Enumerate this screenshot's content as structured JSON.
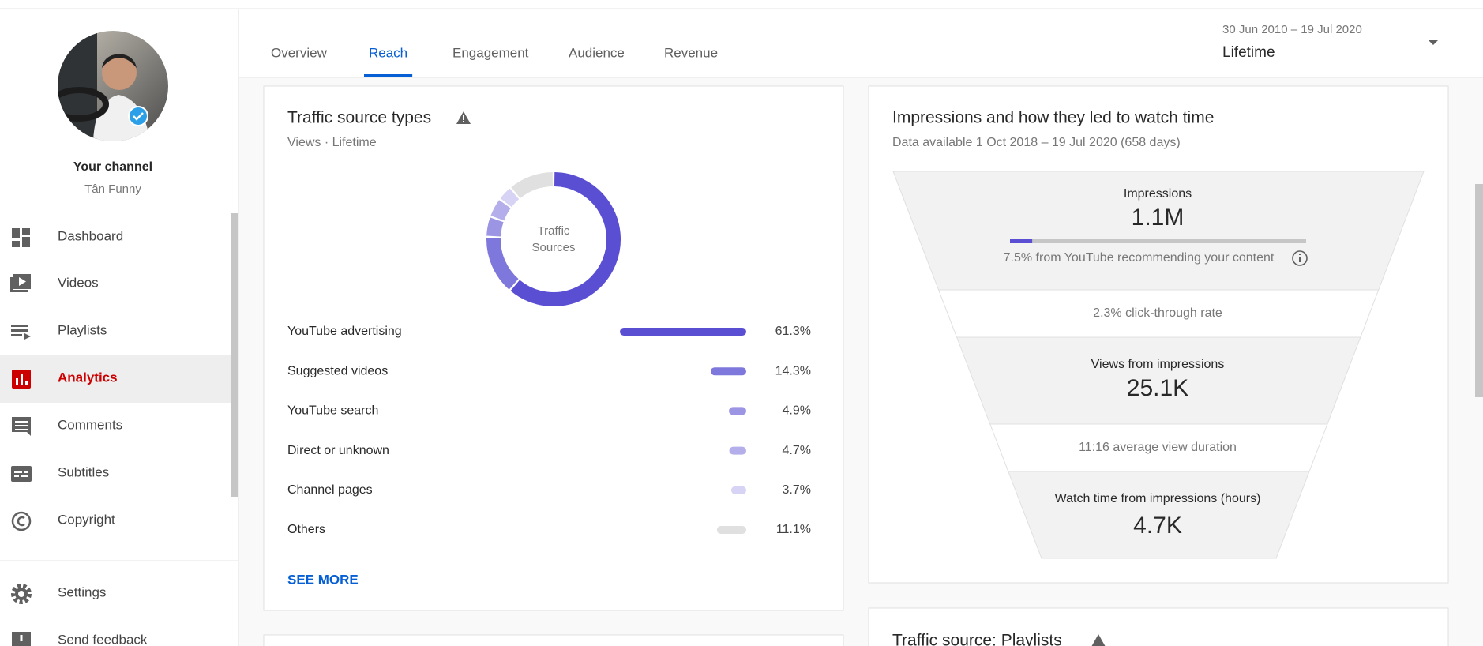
{
  "sidebar": {
    "channel_label": "Your channel",
    "channel_name": "Tân Funny",
    "nav": [
      "Dashboard",
      "Videos",
      "Playlists",
      "Analytics",
      "Comments",
      "Subtitles",
      "Copyright"
    ],
    "active": "Analytics",
    "footer_nav": [
      "Settings",
      "Send feedback"
    ]
  },
  "tabs": {
    "items": [
      "Overview",
      "Reach",
      "Engagement",
      "Audience",
      "Revenue"
    ],
    "active": "Reach"
  },
  "date_range": {
    "range": "30 Jun 2010 – 19 Jul 2020",
    "label": "Lifetime"
  },
  "traffic_card": {
    "title": "Traffic source types",
    "subtitle": "Views · Lifetime",
    "center_label_lines": [
      "Traffic",
      "Sources"
    ],
    "sources": [
      {
        "name": "YouTube advertising",
        "value": 61.3,
        "value_label": "61.3%",
        "color": "#5a4fd3"
      },
      {
        "name": "Suggested videos",
        "value": 14.3,
        "value_label": "14.3%",
        "color": "#7f78dc"
      },
      {
        "name": "YouTube search",
        "value": 4.9,
        "value_label": "4.9%",
        "color": "#9b95e3"
      },
      {
        "name": "Direct or unknown",
        "value": 4.7,
        "value_label": "4.7%",
        "color": "#b4afea"
      },
      {
        "name": "Channel pages",
        "value": 3.7,
        "value_label": "3.7%",
        "color": "#d6d3f4"
      },
      {
        "name": "Others",
        "value": 11.1,
        "value_label": "11.1%",
        "color": "#e0e0e0"
      }
    ],
    "link": "SEE MORE"
  },
  "funnel_card": {
    "title": "Impressions and how they led to watch time",
    "subtitle": "Data available 1 Oct 2018 – 19 Jul 2020 (658 days)",
    "impressions": {
      "label": "Impressions",
      "value": "1.1M"
    },
    "recommended_share": 7.5,
    "recommended_text": "7.5% from YouTube recommending your content",
    "ctr_text": "2.3% click-through rate",
    "views": {
      "label": "Views from impressions",
      "value": "25.1K"
    },
    "duration_text": "11:16 average view duration",
    "watch_time": {
      "label": "Watch time from impressions (hours)",
      "value": "4.7K"
    }
  },
  "next_card": {
    "title": "Traffic source: Playlists"
  }
}
